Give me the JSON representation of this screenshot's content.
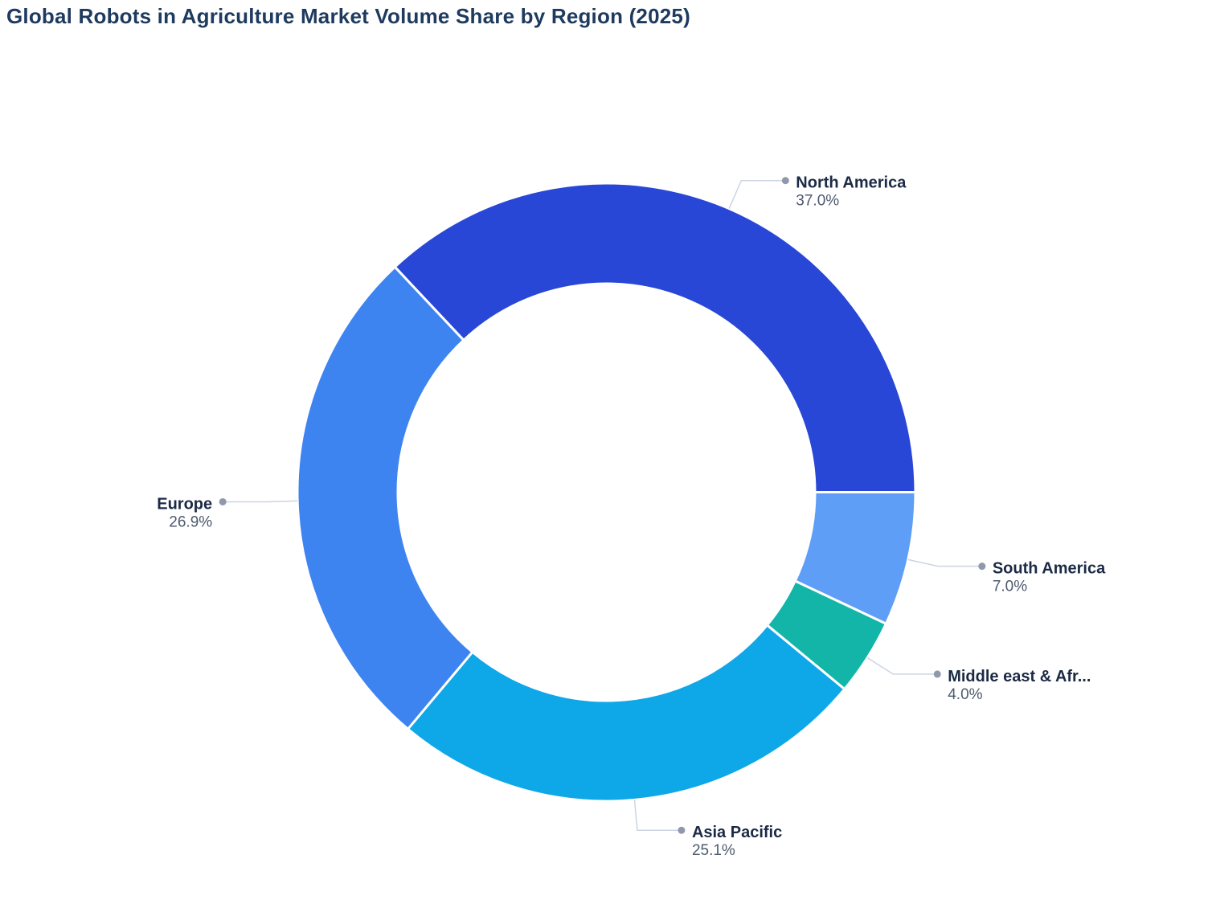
{
  "title": "Global Robots in Agriculture Market Volume Share by Region (2025)",
  "chart_data": {
    "type": "pie",
    "subtype": "donut",
    "title": "Global Robots in Agriculture Market Volume Share by Region (2025)",
    "unit": "%",
    "total": 100.0,
    "start_angle_deg": 133.2,
    "direction": "clockwise",
    "labels_style": "outside-with-leader-lines",
    "legend_position": "none",
    "slices": [
      {
        "label": "North America",
        "value": 37.0,
        "display": "37.0%",
        "color": "#2847d6"
      },
      {
        "label": "South America",
        "value": 7.0,
        "display": "7.0%",
        "color": "#5f9ef6"
      },
      {
        "label": "Middle east & Afr...",
        "value": 4.0,
        "display": "4.0%",
        "color": "#14b5a9"
      },
      {
        "label": "Asia Pacific",
        "value": 25.1,
        "display": "25.1%",
        "color": "#0ea7e8"
      },
      {
        "label": "Europe",
        "value": 26.9,
        "display": "26.9%",
        "color": "#3e84f1"
      }
    ]
  },
  "colors": {
    "background": "#ffffff",
    "title_text": "#1e3a5f",
    "label_name_text": "#1b2a45",
    "label_pct_text": "#4d5a6e",
    "leader_line": "#ccd4e2",
    "leader_dot": "#8f99ab",
    "slice_gap": "#ffffff"
  }
}
